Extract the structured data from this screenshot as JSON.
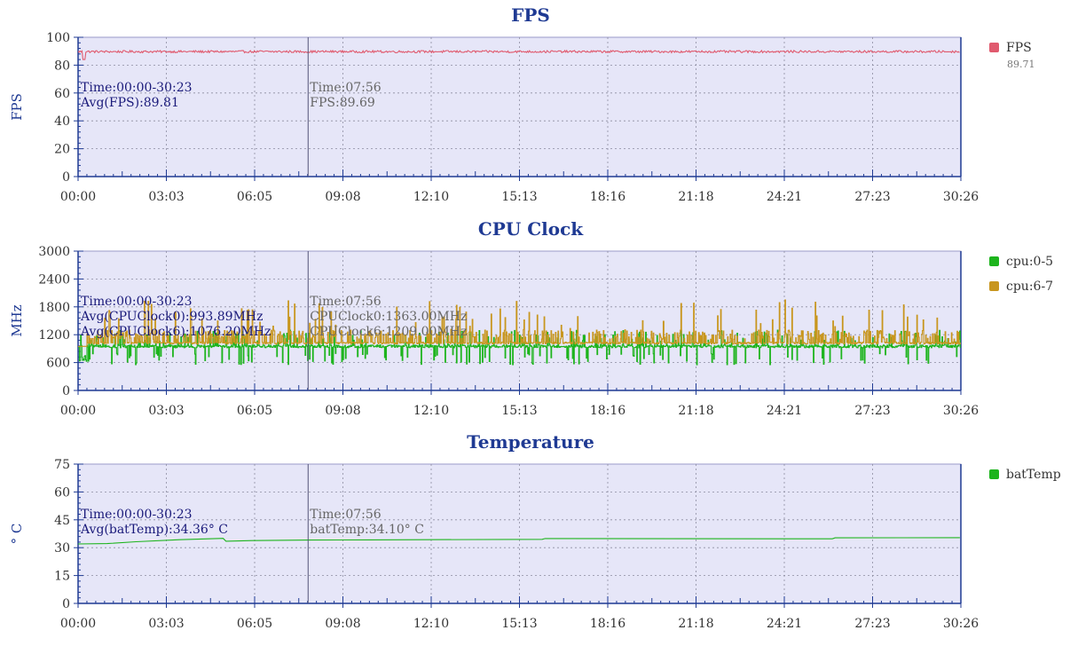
{
  "chart_data": [
    {
      "id": "fps",
      "type": "line",
      "title": "FPS",
      "ylabel": "FPS",
      "ylim": [
        0,
        100
      ],
      "yticks": [
        "0",
        "20",
        "40",
        "60",
        "80",
        "100"
      ],
      "xticks": [
        "00:00",
        "03:03",
        "06:05",
        "09:08",
        "12:10",
        "15:13",
        "18:16",
        "21:18",
        "24:21",
        "27:23",
        "30:26"
      ],
      "grid": true,
      "legend_position": "right",
      "series": [
        {
          "name": "FPS",
          "color": "#e05a6e",
          "base": 89.7,
          "noise": 0.8,
          "drops": [
            [
              0.2,
              84
            ],
            [
              72.0,
              86
            ]
          ],
          "legend_value": "89.71"
        }
      ],
      "summary": [
        "Time:00:00-30:23",
        "Avg(FPS):89.81"
      ],
      "cursor": {
        "time_min": 7.93,
        "lines": [
          "Time:07:56",
          "FPS:89.69"
        ]
      }
    },
    {
      "id": "cpu",
      "type": "line",
      "title": "CPU Clock",
      "ylabel": "MHz",
      "ylim": [
        0,
        3000
      ],
      "yticks": [
        "0",
        "600",
        "1200",
        "1800",
        "2400",
        "3000"
      ],
      "xticks": [
        "00:00",
        "03:03",
        "06:05",
        "09:08",
        "12:10",
        "15:13",
        "18:16",
        "21:18",
        "24:21",
        "27:23",
        "30:26"
      ],
      "grid": true,
      "legend_position": "right",
      "series": [
        {
          "name": "cpu:0-5",
          "color": "#1db41d",
          "base": 950,
          "low": 550,
          "high": 1300
        },
        {
          "name": "cpu:6-7",
          "color": "#c8961e",
          "base": 1000,
          "low": 950,
          "high": 1950
        }
      ],
      "summary": [
        "Time:00:00-30:23",
        "Avg(CPUClock0):993.89MHz",
        "Avg(CPUClock6):1076.20MHz"
      ],
      "cursor": {
        "time_min": 7.93,
        "lines": [
          "Time:07:56",
          "CPUClock0:1363.00MHz",
          "CPUClock6:1209.00MHz"
        ]
      }
    },
    {
      "id": "temp",
      "type": "line",
      "title": "Temperature",
      "ylabel": "° C",
      "ylim": [
        0,
        75
      ],
      "yticks": [
        "0",
        "15",
        "30",
        "45",
        "60",
        "75"
      ],
      "xticks": [
        "00:00",
        "03:03",
        "06:05",
        "09:08",
        "12:10",
        "15:13",
        "18:16",
        "21:18",
        "24:21",
        "27:23",
        "30:26"
      ],
      "grid": true,
      "legend_position": "right",
      "series": [
        {
          "name": "batTemp",
          "color": "#1db41d",
          "points": [
            [
              0,
              32.0
            ],
            [
              1.0,
              32.2
            ],
            [
              2.0,
              33.2
            ],
            [
              3.5,
              34.3
            ],
            [
              5.0,
              35.0
            ],
            [
              5.1,
              33.5
            ],
            [
              6.0,
              33.8
            ],
            [
              8.0,
              34.1
            ],
            [
              10.0,
              34.2
            ],
            [
              16.0,
              34.5
            ],
            [
              16.1,
              34.9
            ],
            [
              26.0,
              34.8
            ],
            [
              26.1,
              35.3
            ],
            [
              30.4,
              35.4
            ]
          ]
        }
      ],
      "summary": [
        "Time:00:00-30:23",
        "Avg(batTemp):34.36° C"
      ],
      "cursor": {
        "time_min": 7.93,
        "lines": [
          "Time:07:56",
          "batTemp:34.10° C"
        ]
      }
    }
  ]
}
